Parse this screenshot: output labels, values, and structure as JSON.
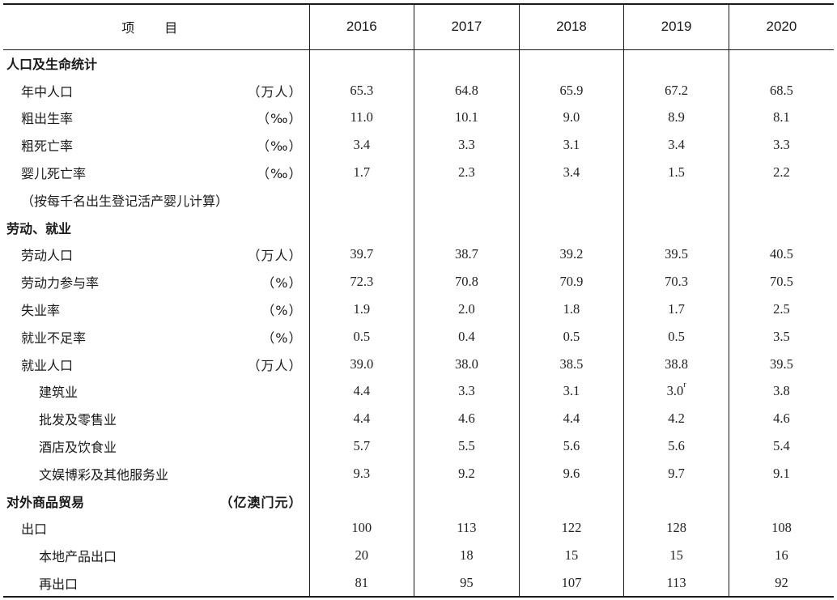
{
  "header": {
    "item_label": "项 目",
    "years": [
      "2016",
      "2017",
      "2018",
      "2019",
      "2020"
    ]
  },
  "rows": [
    {
      "label": "人口及生命统计",
      "unit": "",
      "level": 0,
      "values": [
        "",
        "",
        "",
        "",
        ""
      ]
    },
    {
      "label": "年中人口",
      "unit": "（万人）",
      "level": 1,
      "values": [
        "65.3",
        "64.8",
        "65.9",
        "67.2",
        "68.5"
      ]
    },
    {
      "label": "粗出生率",
      "unit": "（‰）",
      "level": 1,
      "values": [
        "11.0",
        "10.1",
        "9.0",
        "8.9",
        "8.1"
      ]
    },
    {
      "label": "粗死亡率",
      "unit": "（‰）",
      "level": 1,
      "values": [
        "3.4",
        "3.3",
        "3.1",
        "3.4",
        "3.3"
      ]
    },
    {
      "label": "婴儿死亡率",
      "unit": "（‰）",
      "level": 1,
      "values": [
        "1.7",
        "2.3",
        "3.4",
        "1.5",
        "2.2"
      ]
    },
    {
      "label": "（按每千名出生登记活产婴儿计算）",
      "unit": "",
      "level": 1,
      "values": [
        "",
        "",
        "",
        "",
        ""
      ]
    },
    {
      "label": "劳动、就业",
      "unit": "",
      "level": 0,
      "values": [
        "",
        "",
        "",
        "",
        ""
      ]
    },
    {
      "label": "劳动人口",
      "unit": "（万人）",
      "level": 1,
      "values": [
        "39.7",
        "38.7",
        "39.2",
        "39.5",
        "40.5"
      ]
    },
    {
      "label": "劳动力参与率",
      "unit": "（%）",
      "level": 1,
      "values": [
        "72.3",
        "70.8",
        "70.9",
        "70.3",
        "70.5"
      ]
    },
    {
      "label": "失业率",
      "unit": "（%）",
      "level": 1,
      "values": [
        "1.9",
        "2.0",
        "1.8",
        "1.7",
        "2.5"
      ]
    },
    {
      "label": "就业不足率",
      "unit": "（%）",
      "level": 1,
      "values": [
        "0.5",
        "0.4",
        "0.5",
        "0.5",
        "3.5"
      ]
    },
    {
      "label": "就业人口",
      "unit": "（万人）",
      "level": 1,
      "values": [
        "39.0",
        "38.0",
        "38.5",
        "38.8",
        "39.5"
      ]
    },
    {
      "label": "建筑业",
      "unit": "",
      "level": 2,
      "values": [
        "4.4",
        "3.3",
        "3.1",
        "3.0",
        "3.8"
      ],
      "flags": [
        "",
        "",
        "",
        "r",
        ""
      ]
    },
    {
      "label": "批发及零售业",
      "unit": "",
      "level": 2,
      "values": [
        "4.4",
        "4.6",
        "4.4",
        "4.2",
        "4.6"
      ]
    },
    {
      "label": "酒店及饮食业",
      "unit": "",
      "level": 2,
      "values": [
        "5.7",
        "5.5",
        "5.6",
        "5.6",
        "5.4"
      ]
    },
    {
      "label": "文娱博彩及其他服务业",
      "unit": "",
      "level": 2,
      "values": [
        "9.3",
        "9.2",
        "9.6",
        "9.7",
        "9.1"
      ]
    },
    {
      "label": "对外商品贸易",
      "unit": "（亿澳门元）",
      "level": 0,
      "values": [
        "",
        "",
        "",
        "",
        ""
      ]
    },
    {
      "label": "出口",
      "unit": "",
      "level": 1,
      "values": [
        "100",
        "113",
        "122",
        "128",
        "108"
      ]
    },
    {
      "label": "本地产品出口",
      "unit": "",
      "level": 2,
      "values": [
        "20",
        "18",
        "15",
        "15",
        "16"
      ]
    },
    {
      "label": "再出口",
      "unit": "",
      "level": 2,
      "values": [
        "81",
        "95",
        "107",
        "113",
        "92"
      ]
    }
  ]
}
